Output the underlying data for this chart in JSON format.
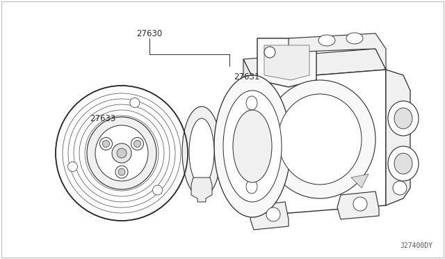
{
  "background_color": "#ffffff",
  "border_color": "#aaaaaa",
  "line_color": "#2a2a2a",
  "part_number_color": "#2a2a2a",
  "watermark": "J27400DY",
  "fig_width": 6.4,
  "fig_height": 3.72,
  "dpi": 100
}
